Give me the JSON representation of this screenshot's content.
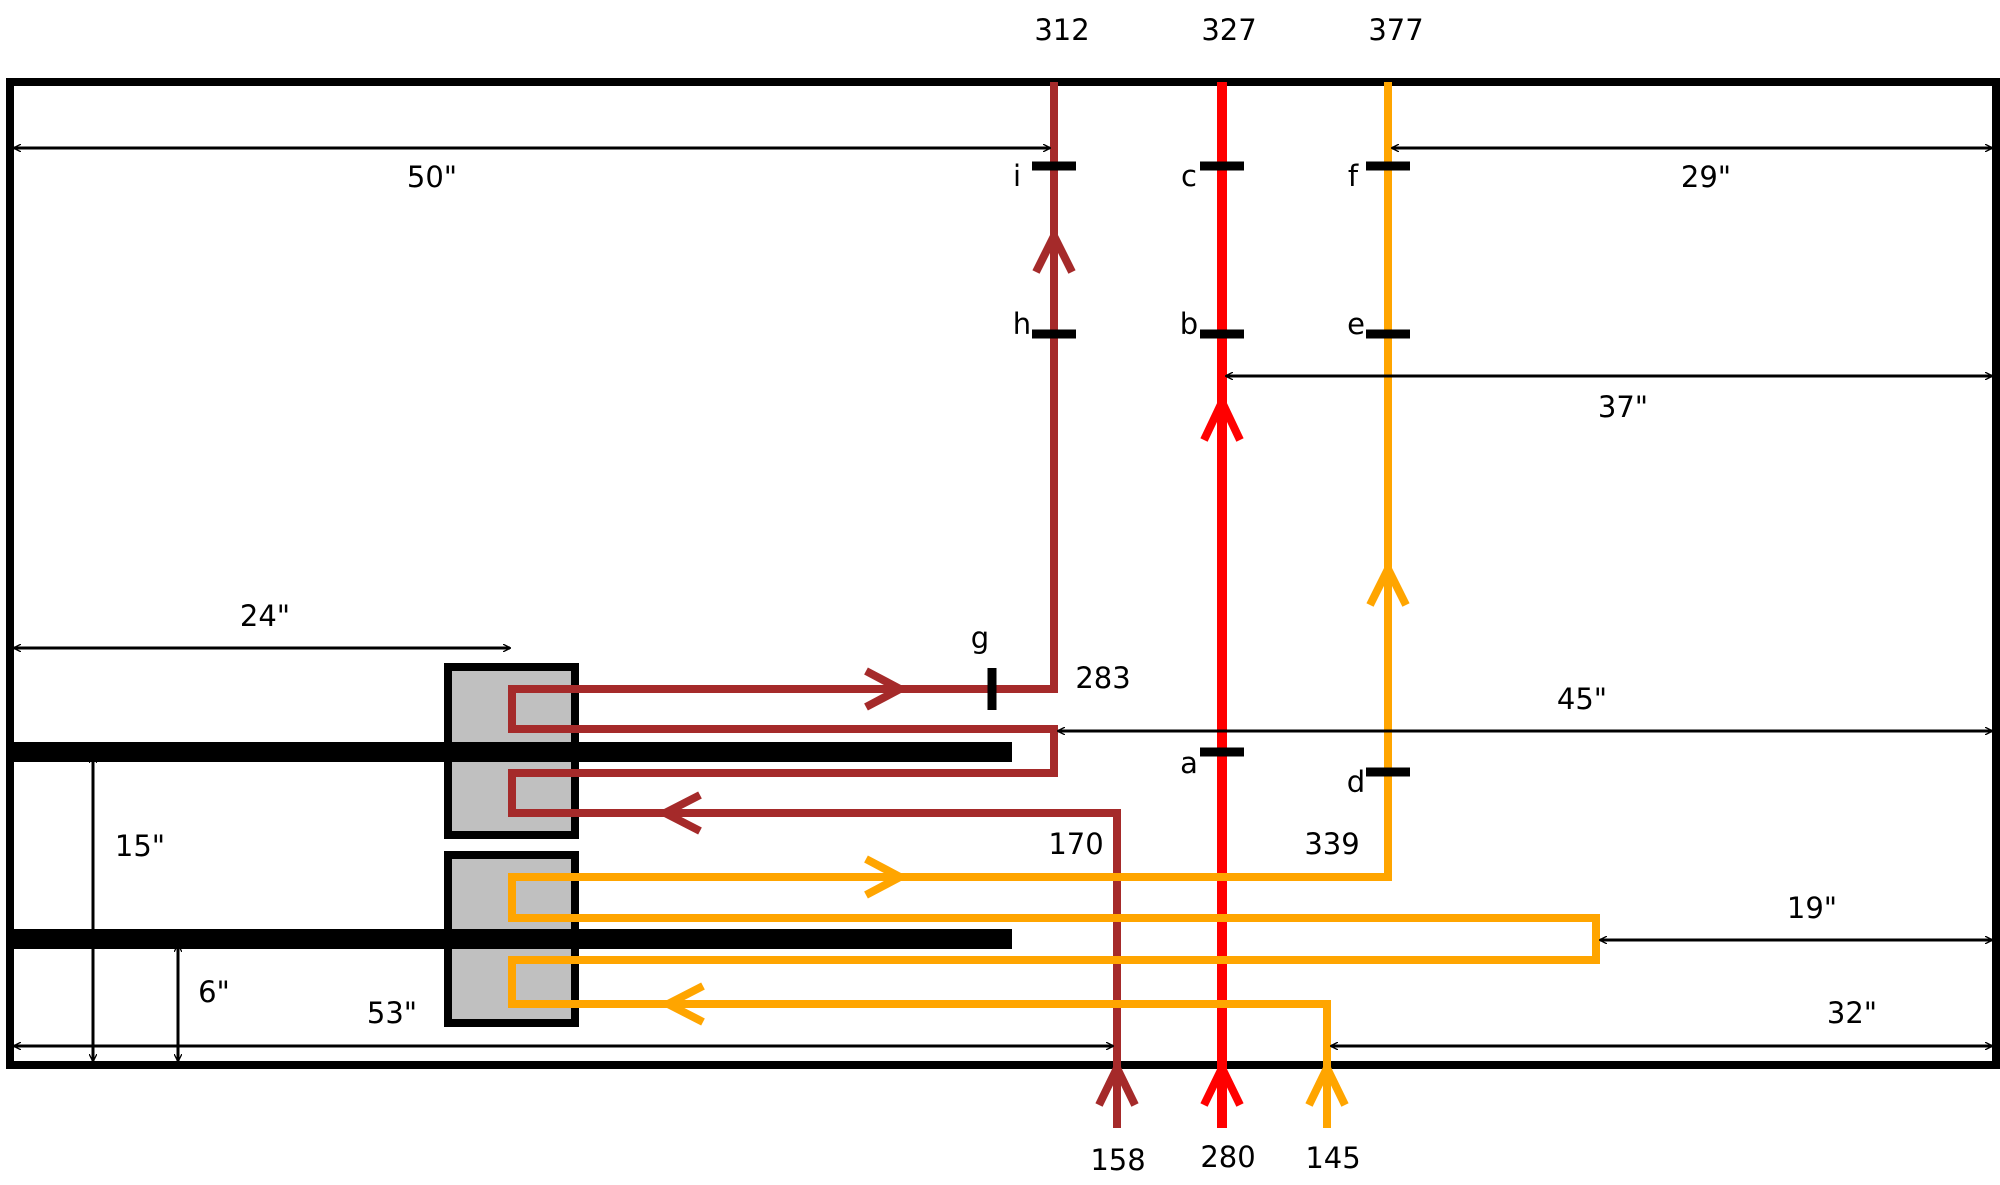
{
  "colors": {
    "brown": "#a52a2a",
    "red": "#ff0000",
    "orange": "#ffa500",
    "black": "#000000",
    "box_fill": "#c0c0c0"
  },
  "top_labels": {
    "brown": "312",
    "red": "327",
    "orange": "377"
  },
  "bottom_labels": {
    "brown": "158",
    "red": "280",
    "orange": "145"
  },
  "inner_labels": {
    "g_value": "283",
    "brown_return": "170",
    "orange_turn": "339"
  },
  "points": {
    "a": "a",
    "b": "b",
    "c": "c",
    "d": "d",
    "e": "e",
    "f": "f",
    "g": "g",
    "h": "h",
    "i": "i"
  },
  "dimensions": {
    "d50": "50\"",
    "d29": "29\"",
    "d37": "37\"",
    "d24": "24\"",
    "d45": "45\"",
    "d15": "15\"",
    "d19": "19\"",
    "d6": "6\"",
    "d53": "53\"",
    "d32": "32\""
  }
}
